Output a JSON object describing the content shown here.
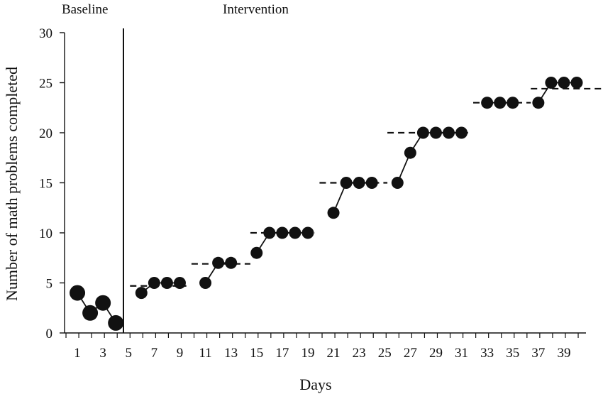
{
  "chart_data": {
    "type": "scatter",
    "title": "",
    "xlabel": "Days",
    "ylabel": "Number of math problems completed",
    "xlim": [
      0,
      41
    ],
    "ylim": [
      0,
      30
    ],
    "x_ticks": [
      1,
      3,
      5,
      7,
      9,
      11,
      13,
      15,
      17,
      19,
      21,
      23,
      25,
      27,
      29,
      31,
      33,
      35,
      37,
      39
    ],
    "y_ticks": [
      0,
      5,
      10,
      15,
      20,
      25,
      30
    ],
    "grid": false,
    "phases": [
      {
        "label": "Baseline",
        "start": 0.5,
        "end": 4.5
      },
      {
        "label": "Intervention",
        "start": 4.5,
        "end": 40
      }
    ],
    "phase_change_x": 4.5,
    "baseline": {
      "x": [
        1,
        2,
        3,
        4
      ],
      "y": [
        4,
        2,
        3,
        1
      ]
    },
    "intervention_segments": [
      {
        "x": [
          6,
          7,
          8,
          9
        ],
        "y": [
          4,
          5,
          5,
          5
        ]
      },
      {
        "x": [
          11,
          12,
          13
        ],
        "y": [
          5,
          7,
          7
        ]
      },
      {
        "x": [
          15,
          16,
          17,
          18,
          19
        ],
        "y": [
          8,
          10,
          10,
          10,
          10
        ]
      },
      {
        "x": [
          21,
          22,
          23,
          24
        ],
        "y": [
          12,
          15,
          15,
          15
        ]
      },
      {
        "x": [
          26,
          27,
          28,
          29,
          30,
          31
        ],
        "y": [
          15,
          18,
          20,
          20,
          20,
          20
        ]
      },
      {
        "x": [
          33,
          34,
          35
        ],
        "y": [
          23,
          23,
          23
        ]
      },
      {
        "x": [
          37,
          38,
          39,
          40
        ],
        "y": [
          23,
          25,
          25,
          25
        ]
      }
    ],
    "criterion_lines": [
      {
        "x_start": 5.5,
        "x_end": 9.9,
        "y": 4.7
      },
      {
        "x_start": 10.3,
        "x_end": 14.9,
        "y": 6.9
      },
      {
        "x_start": 14.9,
        "x_end": 19.9,
        "y": 10
      },
      {
        "x_start": 20.3,
        "x_end": 25.6,
        "y": 15
      },
      {
        "x_start": 25.6,
        "x_end": 31.9,
        "y": 20
      },
      {
        "x_start": 32.3,
        "x_end": 36.8,
        "y": 23
      },
      {
        "x_start": 36.8,
        "x_end": 42.5,
        "y": 24.4
      }
    ]
  }
}
